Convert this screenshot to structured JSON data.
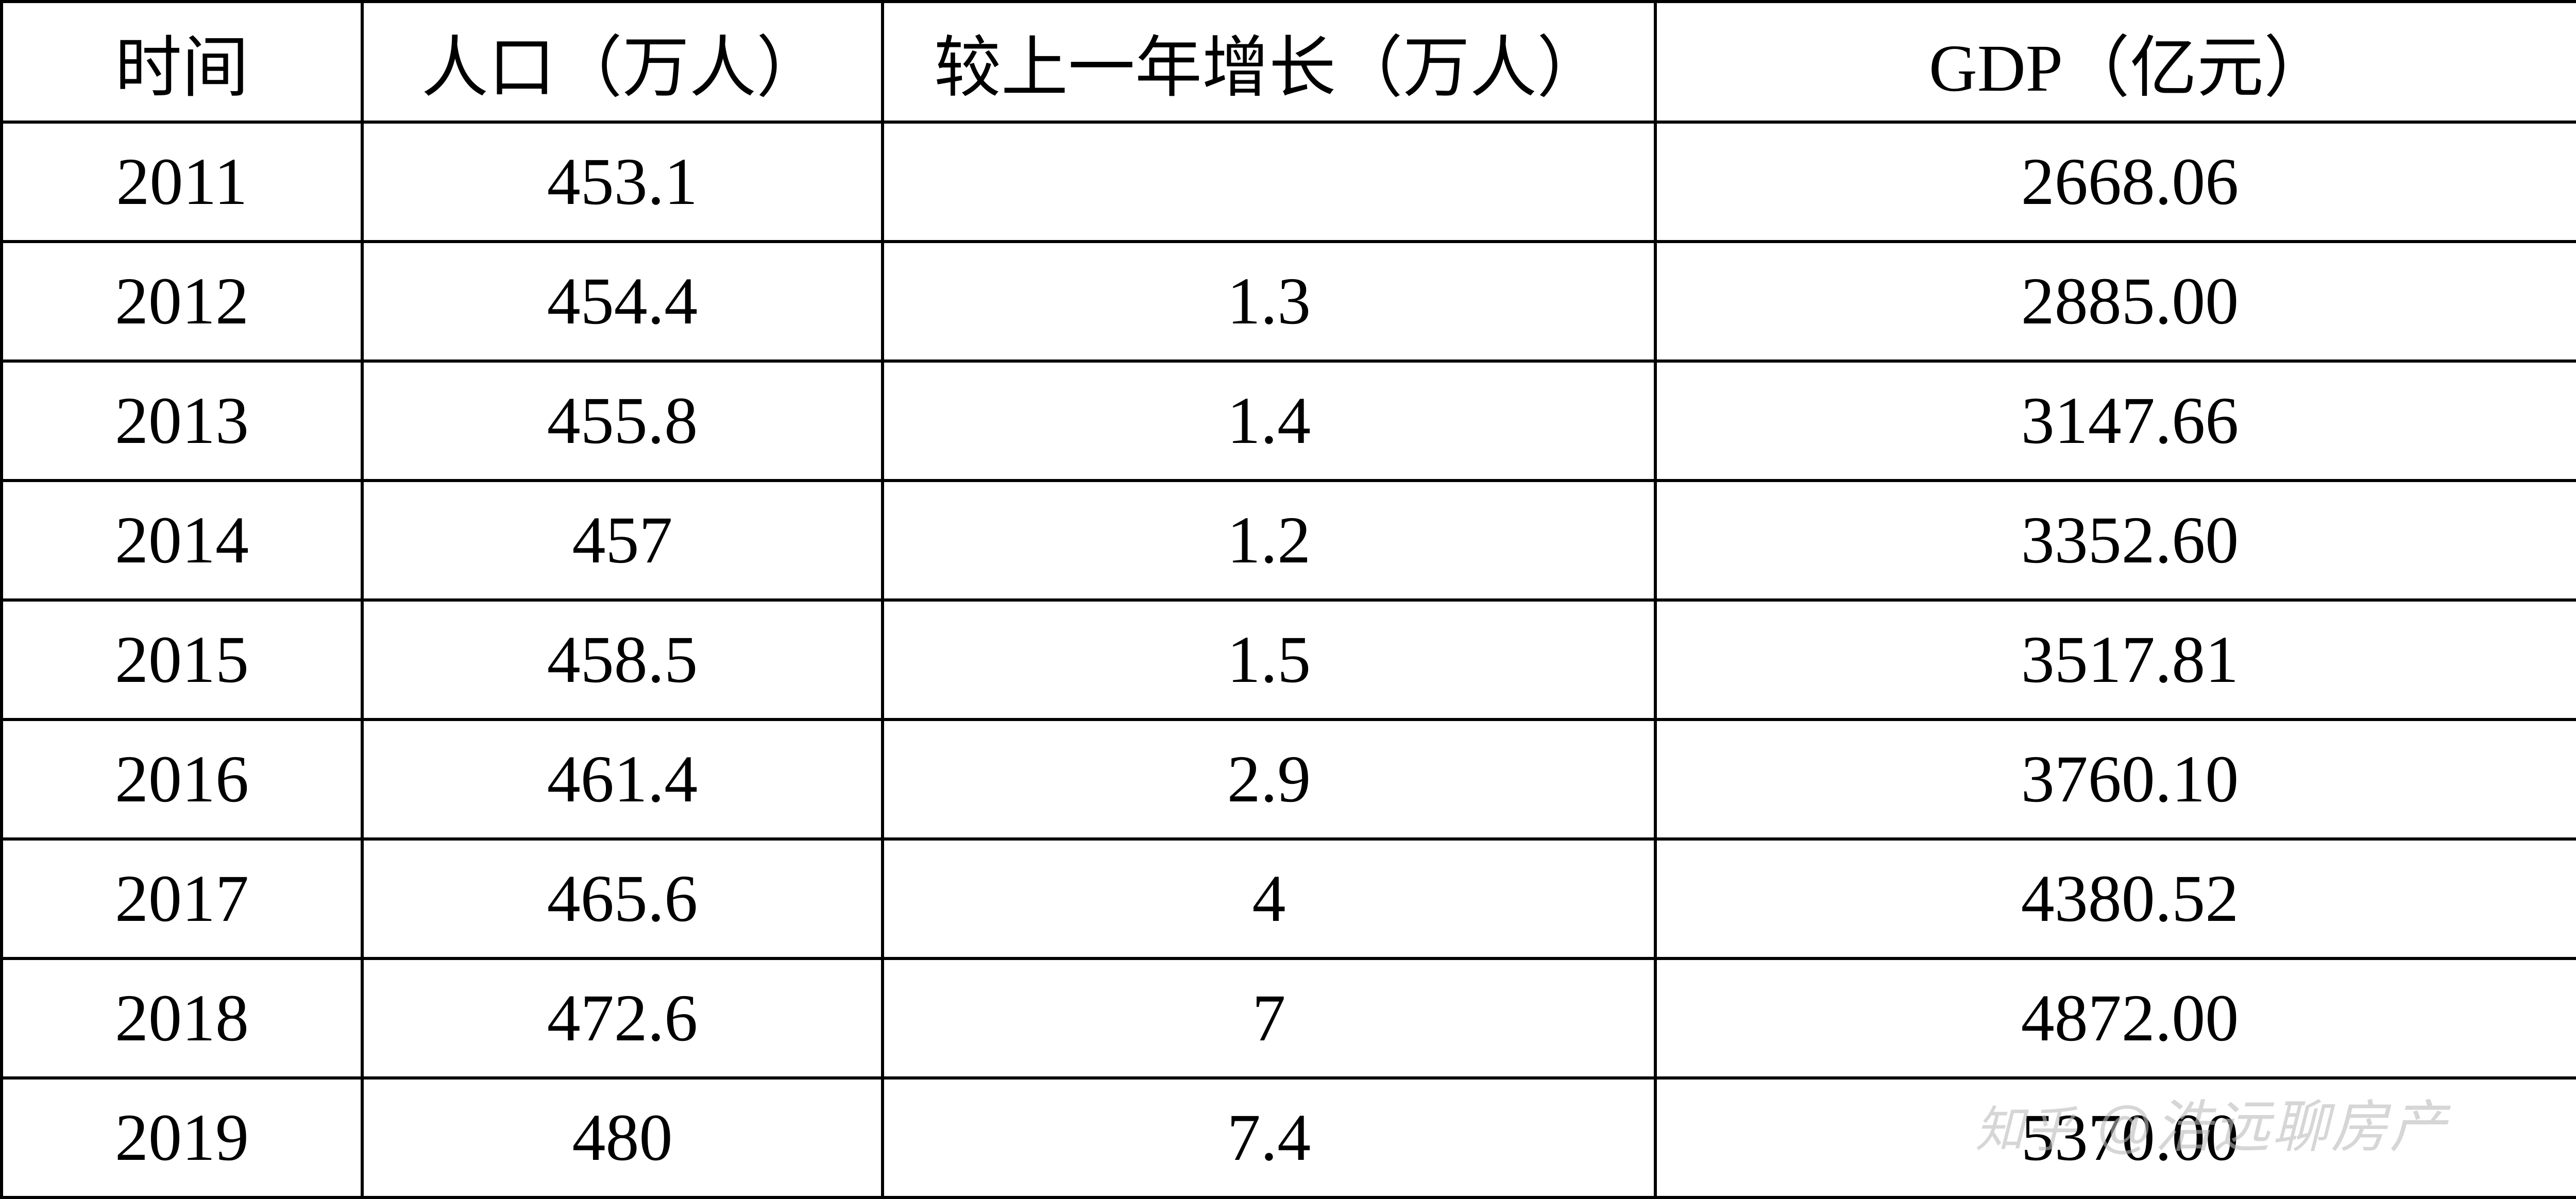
{
  "table": {
    "columns": [
      {
        "key": "time",
        "label": "时间",
        "class": "col-time",
        "align": "center"
      },
      {
        "key": "population",
        "label": "人口（万人）",
        "class": "col-pop",
        "align": "center"
      },
      {
        "key": "growth",
        "label": "较上一年增长（万人）",
        "class": "col-growth",
        "align": "center"
      },
      {
        "key": "gdp",
        "label": "GDP（亿元）",
        "class": "col-gdp",
        "align": "center"
      }
    ],
    "rows": [
      {
        "time": "2011",
        "population": "453.1",
        "growth": "",
        "gdp": "2668.06"
      },
      {
        "time": "2012",
        "population": "454.4",
        "growth": "1.3",
        "gdp": "2885.00"
      },
      {
        "time": "2013",
        "population": "455.8",
        "growth": "1.4",
        "gdp": "3147.66"
      },
      {
        "time": "2014",
        "population": "457",
        "growth": "1.2",
        "gdp": "3352.60"
      },
      {
        "time": "2015",
        "population": "458.5",
        "growth": "1.5",
        "gdp": "3517.81"
      },
      {
        "time": "2016",
        "population": "461.4",
        "growth": "2.9",
        "gdp": "3760.10"
      },
      {
        "time": "2017",
        "population": "465.6",
        "growth": "4",
        "gdp": "4380.52"
      },
      {
        "time": "2018",
        "population": "472.6",
        "growth": "7",
        "gdp": "4872.00"
      },
      {
        "time": "2019",
        "population": "480",
        "growth": "7.4",
        "gdp": "5370.00"
      }
    ],
    "border_color": "#000000",
    "border_width": 6,
    "background_color": "#ffffff",
    "text_color": "#000000",
    "font_size": 130,
    "font_family": "SimSun"
  },
  "watermark": {
    "prefix": "知乎",
    "text": "@浩远聊房产",
    "color": "#bbbbbb",
    "font_size": 110,
    "opacity": 0.6
  }
}
